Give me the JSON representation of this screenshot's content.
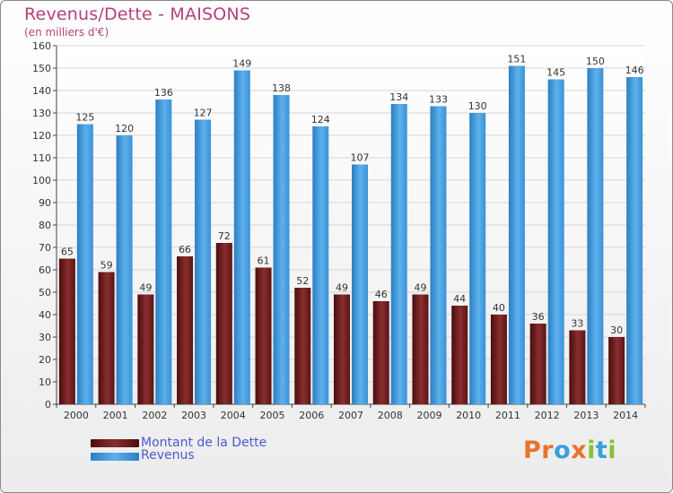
{
  "chart_data": {
    "type": "bar",
    "title": "Revenus/Dette - MAISONS",
    "subtitle": "(en milliers d'€)",
    "categories": [
      "2000",
      "2001",
      "2002",
      "2003",
      "2004",
      "2005",
      "2006",
      "2007",
      "2008",
      "2009",
      "2010",
      "2011",
      "2012",
      "2013",
      "2014"
    ],
    "series": [
      {
        "name": "Montant de la Dette",
        "color": "#7a1f1f",
        "values": [
          65,
          59,
          49,
          66,
          72,
          61,
          52,
          49,
          46,
          49,
          44,
          40,
          36,
          33,
          30
        ]
      },
      {
        "name": "Revenus",
        "color": "#3f9be0",
        "values": [
          125,
          120,
          136,
          127,
          149,
          138,
          124,
          107,
          134,
          133,
          130,
          151,
          145,
          150,
          146
        ]
      }
    ],
    "ylim": [
      0,
      160
    ],
    "ytick_step": 10,
    "grid": true,
    "legend_position": "bottom-left"
  },
  "logo": {
    "text": "Proxiti",
    "letters": [
      {
        "ch": "P",
        "color": "#e8742a"
      },
      {
        "ch": "r",
        "color": "#e8742a"
      },
      {
        "ch": "o",
        "color": "#3aa0d8"
      },
      {
        "ch": "x",
        "color": "#e8742a"
      },
      {
        "ch": "i",
        "color": "#8bbf3a"
      },
      {
        "ch": "t",
        "color": "#3aa0d8"
      },
      {
        "ch": "i",
        "color": "#8bbf3a"
      }
    ]
  }
}
